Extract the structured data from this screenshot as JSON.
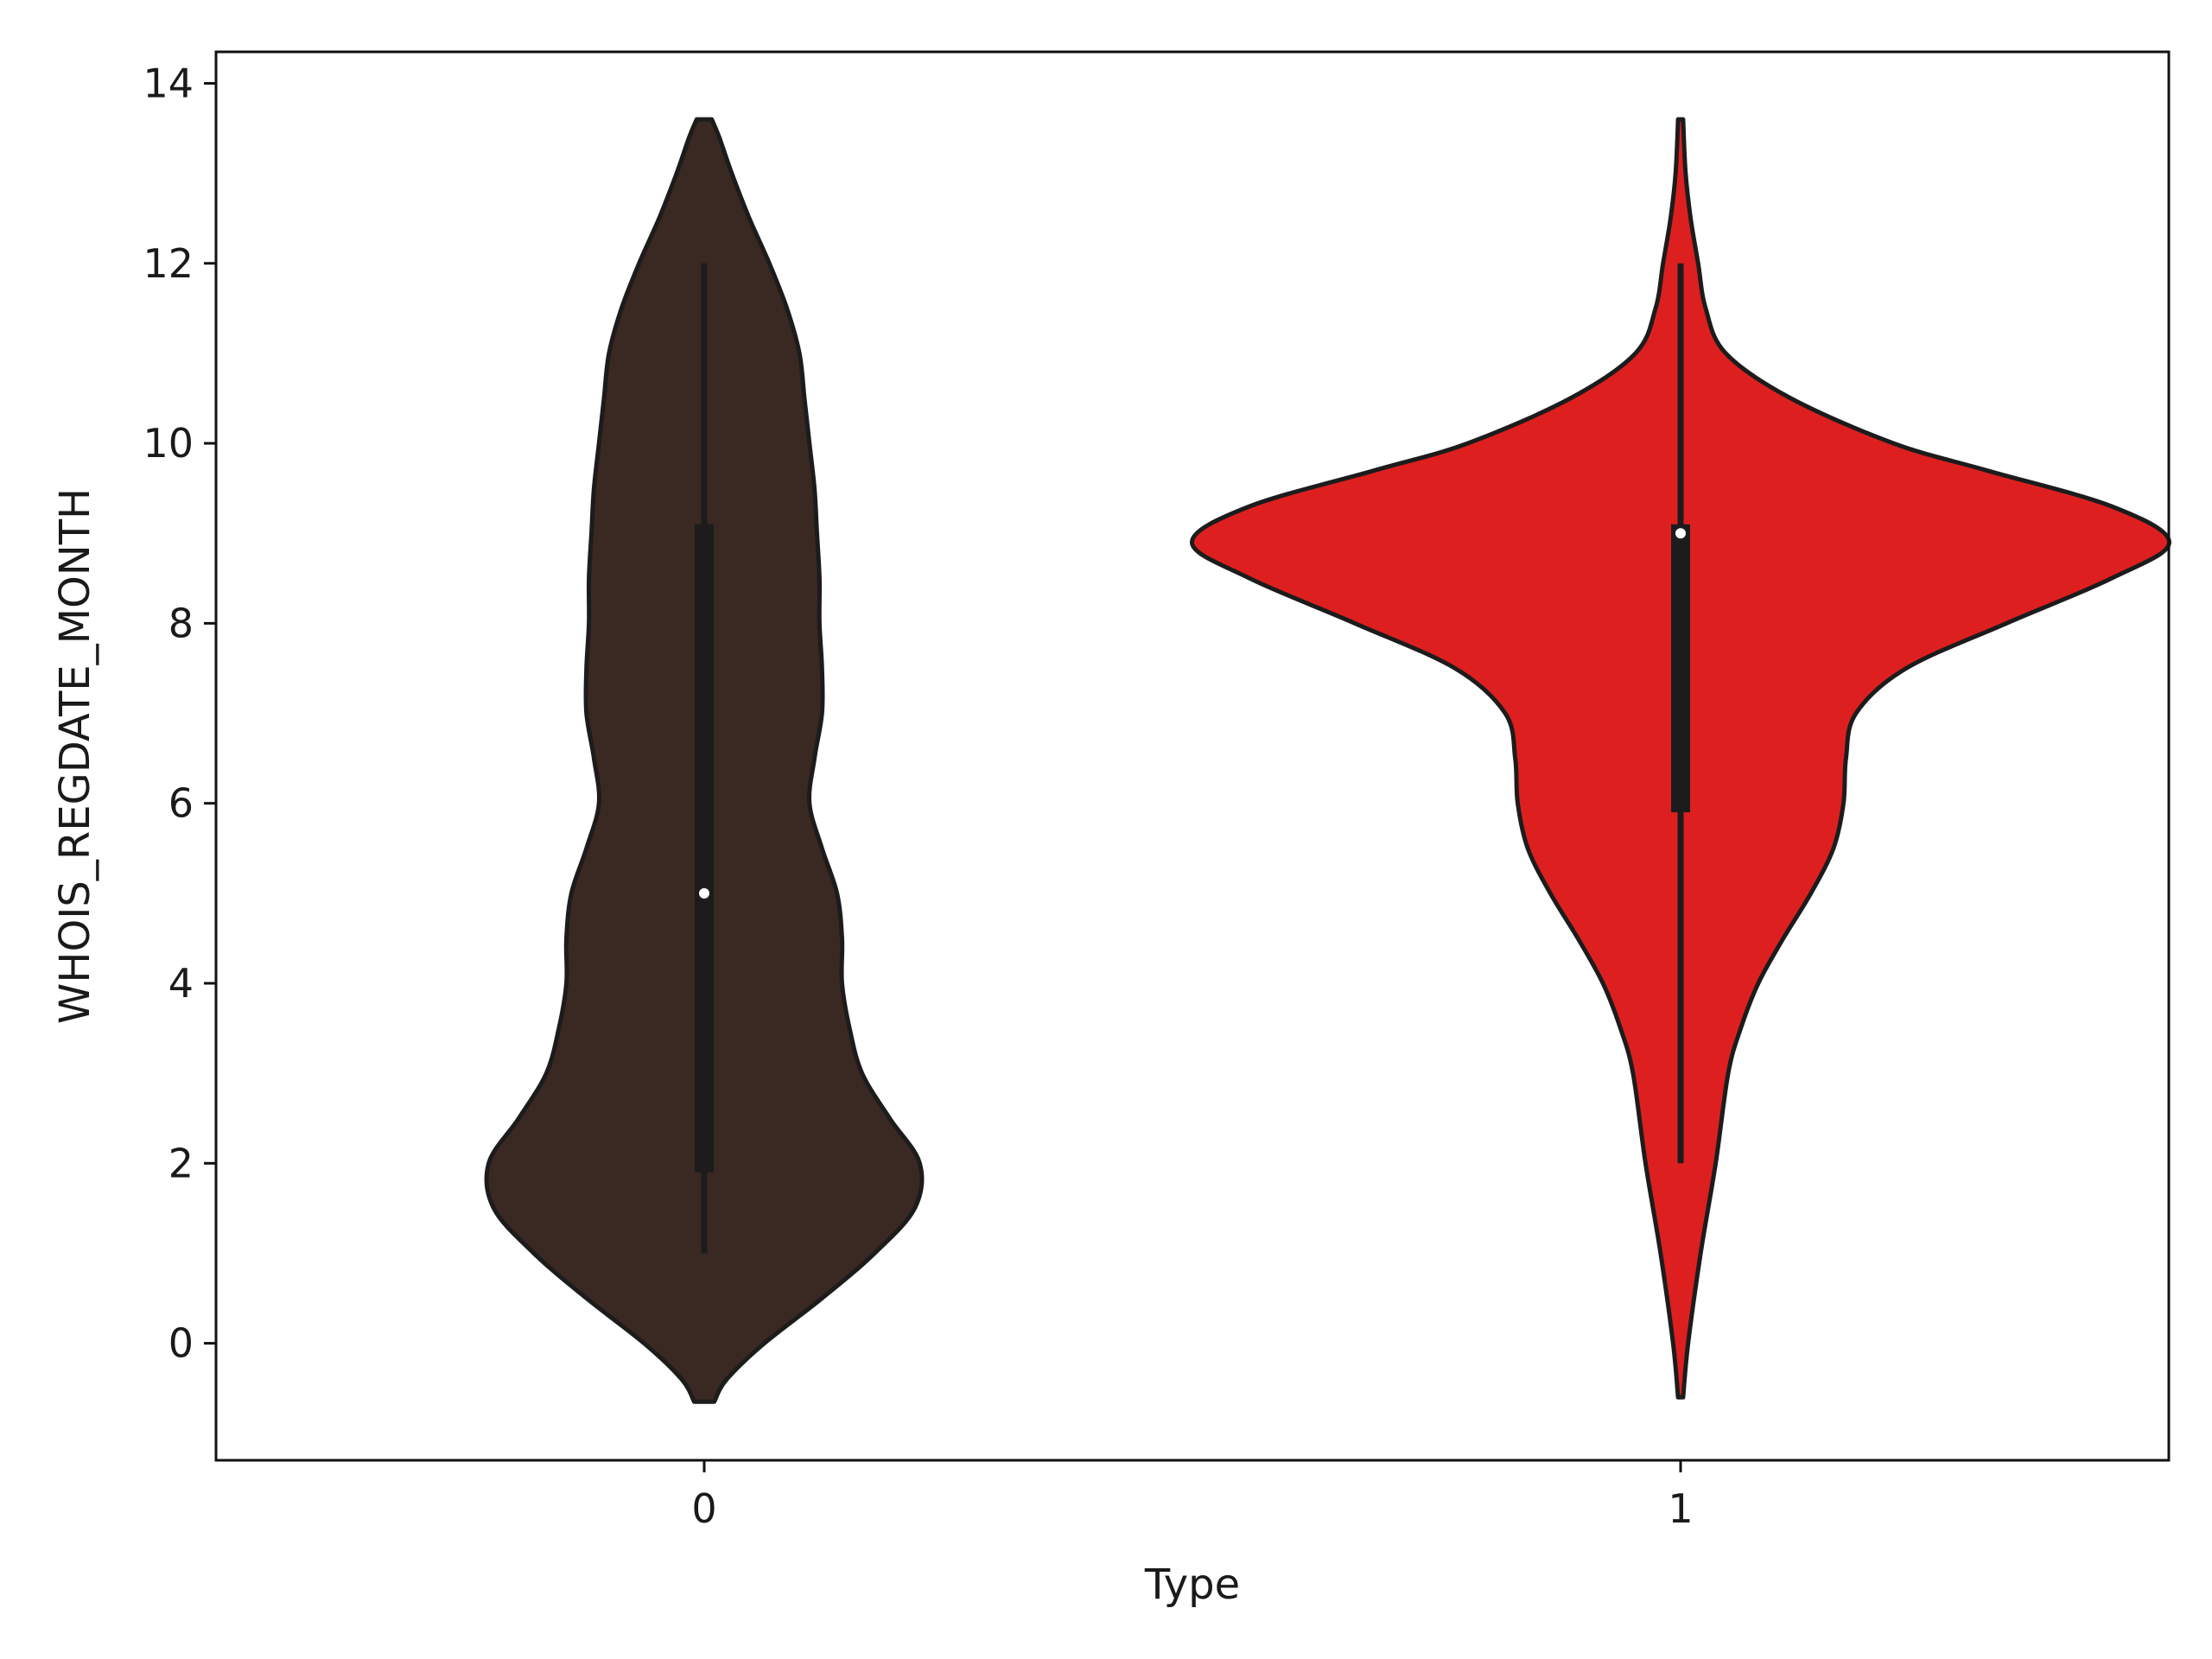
{
  "chart_data": {
    "type": "violin",
    "title": "",
    "xlabel": "Type",
    "ylabel": "WHOIS_REGDATE_MONTH",
    "ylim": [
      -1.3,
      14.35
    ],
    "yticks": [
      0,
      2,
      4,
      6,
      8,
      10,
      12,
      14
    ],
    "categories": [
      "0",
      "1"
    ],
    "grid": false,
    "violins": [
      {
        "category": "0",
        "color": "#3a2822",
        "y_range": [
          -0.65,
          13.6
        ],
        "box": {
          "whisker_low": 1,
          "q1": 1.9,
          "median": 5,
          "q3": 9.1,
          "whisker_high": 12
        },
        "density_profile": [
          [
            -0.65,
            0.04
          ],
          [
            -0.4,
            0.09
          ],
          [
            0.0,
            0.24
          ],
          [
            0.5,
            0.47
          ],
          [
            1.0,
            0.68
          ],
          [
            1.5,
            0.84
          ],
          [
            2.0,
            0.86
          ],
          [
            2.5,
            0.74
          ],
          [
            3.0,
            0.63
          ],
          [
            3.5,
            0.58
          ],
          [
            4.0,
            0.55
          ],
          [
            4.5,
            0.55
          ],
          [
            5.0,
            0.53
          ],
          [
            5.5,
            0.47
          ],
          [
            6.0,
            0.42
          ],
          [
            6.5,
            0.44
          ],
          [
            7.0,
            0.47
          ],
          [
            7.5,
            0.47
          ],
          [
            8.0,
            0.46
          ],
          [
            8.5,
            0.46
          ],
          [
            9.0,
            0.45
          ],
          [
            9.5,
            0.44
          ],
          [
            10.0,
            0.42
          ],
          [
            10.5,
            0.4
          ],
          [
            11.0,
            0.38
          ],
          [
            11.5,
            0.33
          ],
          [
            12.0,
            0.26
          ],
          [
            12.5,
            0.18
          ],
          [
            13.0,
            0.11
          ],
          [
            13.4,
            0.06
          ],
          [
            13.6,
            0.03
          ]
        ]
      },
      {
        "category": "1",
        "color": "#de1f20",
        "y_range": [
          -0.6,
          13.6
        ],
        "box": {
          "whisker_low": 2,
          "q1": 5.9,
          "median": 9,
          "q3": 9.1,
          "whisker_high": 12
        },
        "density_profile": [
          [
            -0.6,
            0.01
          ],
          [
            0.0,
            0.03
          ],
          [
            1.0,
            0.08
          ],
          [
            2.0,
            0.14
          ],
          [
            3.0,
            0.19
          ],
          [
            3.5,
            0.24
          ],
          [
            4.0,
            0.31
          ],
          [
            4.5,
            0.41
          ],
          [
            5.0,
            0.52
          ],
          [
            5.5,
            0.61
          ],
          [
            6.0,
            0.65
          ],
          [
            6.5,
            0.66
          ],
          [
            7.0,
            0.7
          ],
          [
            7.5,
            0.9
          ],
          [
            8.0,
            1.3
          ],
          [
            8.5,
            1.72
          ],
          [
            8.9,
            1.95
          ],
          [
            9.3,
            1.72
          ],
          [
            9.7,
            1.22
          ],
          [
            10.0,
            0.85
          ],
          [
            10.5,
            0.44
          ],
          [
            11.0,
            0.18
          ],
          [
            11.5,
            0.1
          ],
          [
            12.0,
            0.07
          ],
          [
            12.5,
            0.04
          ],
          [
            13.0,
            0.02
          ],
          [
            13.6,
            0.01
          ]
        ]
      }
    ]
  }
}
